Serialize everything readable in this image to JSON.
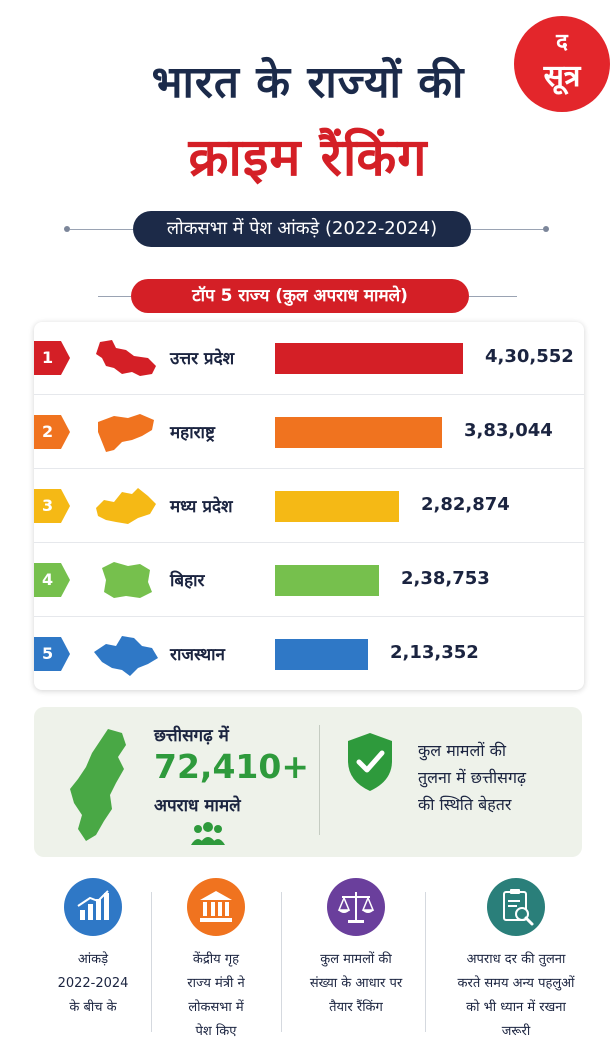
{
  "header": {
    "title_line1": "भारत के राज्यों की",
    "title_line2": "क्राइम रैंकिंग",
    "subtitle": "लोकसभा में पेश आंकड़े (2022-2024)",
    "logo_line1": "द",
    "logo_line2": "सूत्र"
  },
  "section": {
    "top5_label": "टॉप 5 राज्य (कुल अपराध मामले)"
  },
  "colors": {
    "rank1": "#d41f26",
    "rank2": "#f0731f",
    "rank3": "#f5b915",
    "rank4": "#76c04d",
    "rank5": "#2f78c6",
    "navy": "#1c2a48",
    "green": "#2e9a3c"
  },
  "chart_data": {
    "type": "bar",
    "title": "टॉप 5 राज्य (कुल अपराध मामले)",
    "orientation": "horizontal",
    "categories": [
      "उत्तर प्रदेश",
      "महाराष्ट्र",
      "मध्य प्रदेश",
      "बिहार",
      "राजस्थान"
    ],
    "ranks": [
      "1",
      "2",
      "3",
      "4",
      "5"
    ],
    "values": [
      430552,
      383044,
      282874,
      238753,
      213352
    ],
    "value_labels": [
      "4,30,552",
      "3,83,044",
      "2,82,874",
      "2,38,753",
      "2,13,352"
    ],
    "legend": "none",
    "grid": false
  },
  "chhattisgarh": {
    "line1": "छत्तीसगढ़ में",
    "count": "72,410+",
    "line2": "अपराध मामले",
    "comparison_lines": [
      "कुल मामलों की",
      "तुलना में छत्तीसगढ़",
      "की स्थिति बेहतर"
    ]
  },
  "footer": [
    {
      "icon": "bar-chart-icon",
      "color": "#2f78c6",
      "lines": [
        "आंकड़े",
        "2022-2024",
        "के बीच के"
      ]
    },
    {
      "icon": "government-building-icon",
      "color": "#f0731f",
      "lines": [
        "केंद्रीय गृह",
        "राज्य मंत्री ने",
        "लोकसभा में",
        "पेश किए"
      ]
    },
    {
      "icon": "scales-icon",
      "color": "#6a3f9c",
      "lines": [
        "कुल मामलों की",
        "संख्या के आधार पर",
        "तैयार रैंकिंग"
      ]
    },
    {
      "icon": "clipboard-search-icon",
      "color": "#2a7f7a",
      "lines": [
        "अपराध दर की तुलना",
        "करते समय अन्य पहलुओं",
        "को भी ध्यान में रखना",
        "जरूरी"
      ]
    }
  ]
}
